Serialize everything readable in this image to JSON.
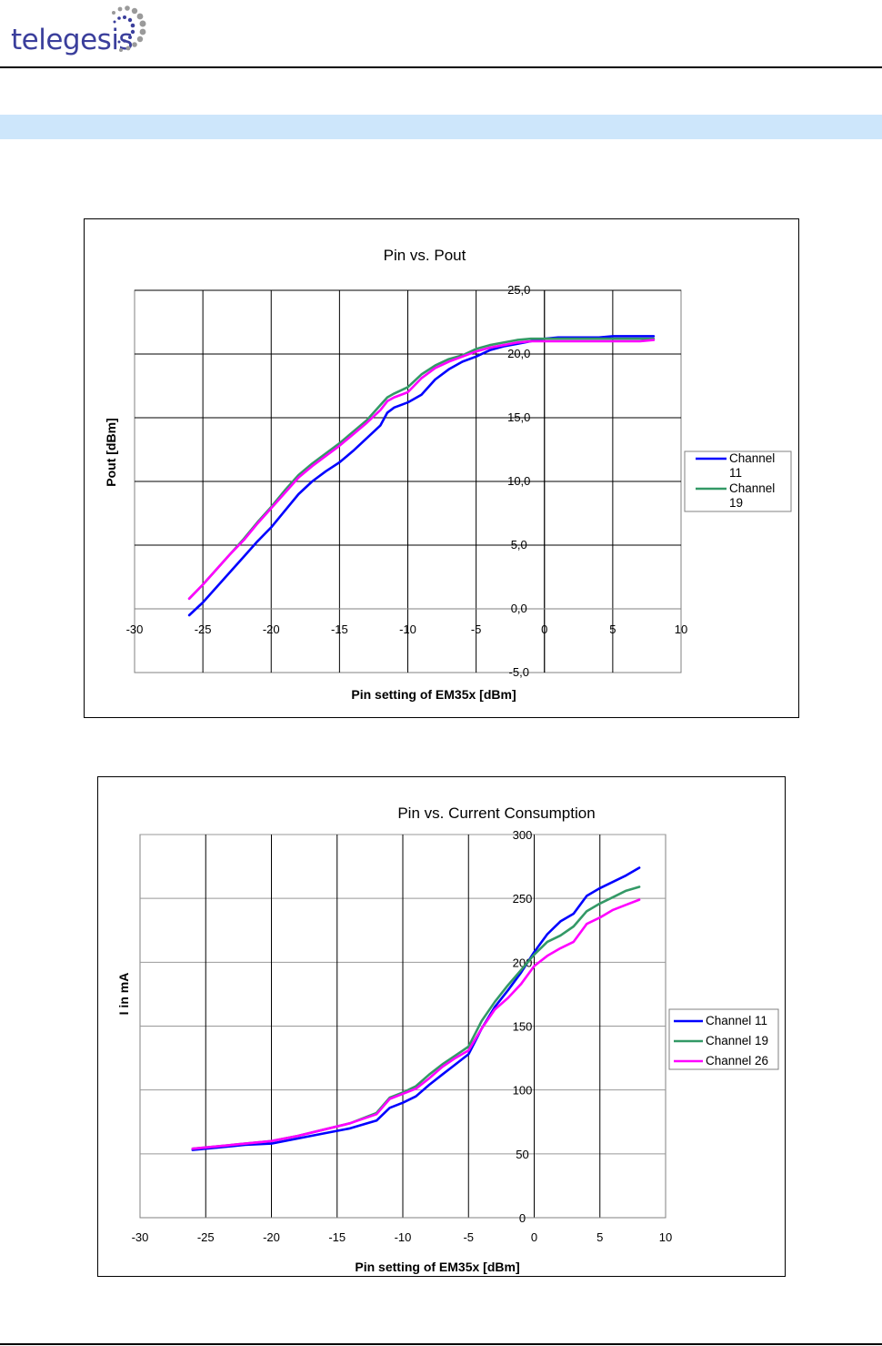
{
  "header": {
    "logo_text": "telegesis"
  },
  "colors": {
    "channel_11": "#0000ff",
    "channel_19": "#339966",
    "channel_26": "#ff00ff",
    "band": "#cde6fb"
  },
  "chart_data": [
    {
      "type": "line",
      "title": "Pin vs. Pout",
      "xlabel": "Pin setting of EM35x [dBm]",
      "ylabel": "Pout [dBm]",
      "xlim": [
        -30,
        10
      ],
      "ylim": [
        -5,
        25
      ],
      "x_ticks": [
        -30,
        -25,
        -20,
        -15,
        -10,
        -5,
        0,
        5,
        10
      ],
      "x_tick_labels": [
        "-30",
        "-25",
        "-20",
        "-15",
        "-10",
        "-5",
        "0",
        "5",
        "10"
      ],
      "y_ticks": [
        -5,
        0,
        5,
        10,
        15,
        20,
        25
      ],
      "y_tick_labels": [
        "-5,0",
        "0,0",
        "5,0",
        "10,0",
        "15,0",
        "20,0",
        "25,0"
      ],
      "grid": true,
      "legend_position": "right",
      "legend": [
        {
          "label_line1": "Channel",
          "label_line2": "11",
          "color": "#0000ff"
        },
        {
          "label_line1": "Channel",
          "label_line2": "19",
          "color": "#339966"
        }
      ],
      "x": [
        -26,
        -25,
        -24,
        -23,
        -22,
        -21,
        -20,
        -19,
        -18,
        -17,
        -16,
        -15,
        -14,
        -13,
        -12,
        -11.5,
        -11,
        -10,
        -9,
        -8,
        -7,
        -6,
        -5,
        -4,
        -3,
        -2,
        -1,
        0,
        1,
        2,
        3,
        4,
        5,
        6,
        7,
        8
      ],
      "series": [
        {
          "name": "Channel 11",
          "color": "#0000ff",
          "values": [
            -0.5,
            0.5,
            1.7,
            2.9,
            4.1,
            5.3,
            6.4,
            7.7,
            9.0,
            10.0,
            10.8,
            11.5,
            12.4,
            13.4,
            14.4,
            15.4,
            15.8,
            16.2,
            16.8,
            18.0,
            18.8,
            19.4,
            19.8,
            20.3,
            20.6,
            20.8,
            21.0,
            21.2,
            21.3,
            21.3,
            21.3,
            21.3,
            21.4,
            21.4,
            21.4,
            21.4
          ]
        },
        {
          "name": "Channel 19",
          "color": "#339966",
          "values": [
            0.8,
            1.9,
            3.1,
            4.3,
            5.5,
            6.8,
            8.0,
            9.3,
            10.5,
            11.4,
            12.2,
            13.0,
            13.9,
            14.8,
            16.0,
            16.6,
            16.9,
            17.4,
            18.4,
            19.1,
            19.6,
            19.9,
            20.4,
            20.7,
            20.9,
            21.1,
            21.2,
            21.2,
            21.2,
            21.2,
            21.2,
            21.2,
            21.2,
            21.2,
            21.2,
            21.2
          ]
        },
        {
          "name": "Channel 26",
          "color": "#ff00ff",
          "values": [
            0.8,
            1.9,
            3.1,
            4.3,
            5.4,
            6.7,
            7.9,
            9.1,
            10.3,
            11.2,
            12.0,
            12.8,
            13.7,
            14.6,
            15.6,
            16.3,
            16.6,
            17.0,
            18.1,
            18.9,
            19.4,
            19.8,
            20.2,
            20.5,
            20.7,
            20.9,
            21.0,
            21.0,
            21.0,
            21.0,
            21.0,
            21.0,
            21.0,
            21.0,
            21.0,
            21.1
          ]
        }
      ]
    },
    {
      "type": "line",
      "title": "Pin vs. Current Consumption",
      "xlabel": "Pin setting of EM35x [dBm]",
      "ylabel": "I in mA",
      "xlim": [
        -30,
        10
      ],
      "ylim": [
        0,
        300
      ],
      "x_ticks": [
        -30,
        -25,
        -20,
        -15,
        -10,
        -5,
        0,
        5,
        10
      ],
      "x_tick_labels": [
        "-30",
        "-25",
        "-20",
        "-15",
        "-10",
        "-5",
        "0",
        "5",
        "10"
      ],
      "y_ticks": [
        0,
        50,
        100,
        150,
        200,
        250,
        300
      ],
      "y_tick_labels": [
        "0",
        "50",
        "100",
        "150",
        "200",
        "250",
        "300"
      ],
      "grid": true,
      "legend_position": "right",
      "legend": [
        {
          "label_line1": "Channel 11",
          "color": "#0000ff"
        },
        {
          "label_line1": "Channel 19",
          "color": "#339966"
        },
        {
          "label_line1": "Channel 26",
          "color": "#ff00ff"
        }
      ],
      "x": [
        -26,
        -24,
        -22,
        -20,
        -18,
        -16,
        -14,
        -12,
        -11,
        -10,
        -9,
        -8,
        -7,
        -6,
        -5,
        -4,
        -3,
        -2,
        -1,
        0,
        1,
        2,
        3,
        4,
        5,
        6,
        7,
        8
      ],
      "series": [
        {
          "name": "Channel 11",
          "color": "#0000ff",
          "values": [
            53,
            55,
            57,
            58,
            62,
            66,
            70,
            76,
            86,
            90,
            95,
            104,
            112,
            120,
            128,
            148,
            165,
            178,
            192,
            208,
            222,
            232,
            238,
            252,
            258,
            263,
            268,
            274
          ]
        },
        {
          "name": "Channel 19",
          "color": "#339966",
          "values": [
            54,
            56,
            58,
            60,
            64,
            69,
            74,
            82,
            94,
            98,
            103,
            112,
            120,
            127,
            134,
            154,
            169,
            182,
            194,
            206,
            216,
            221,
            228,
            240,
            246,
            251,
            256,
            259
          ]
        },
        {
          "name": "Channel 26",
          "color": "#ff00ff",
          "values": [
            54,
            56,
            58,
            60,
            64,
            69,
            74,
            81,
            93,
            97,
            101,
            109,
            118,
            125,
            131,
            148,
            163,
            172,
            183,
            197,
            205,
            211,
            216,
            230,
            235,
            241,
            245,
            249
          ]
        }
      ]
    }
  ]
}
